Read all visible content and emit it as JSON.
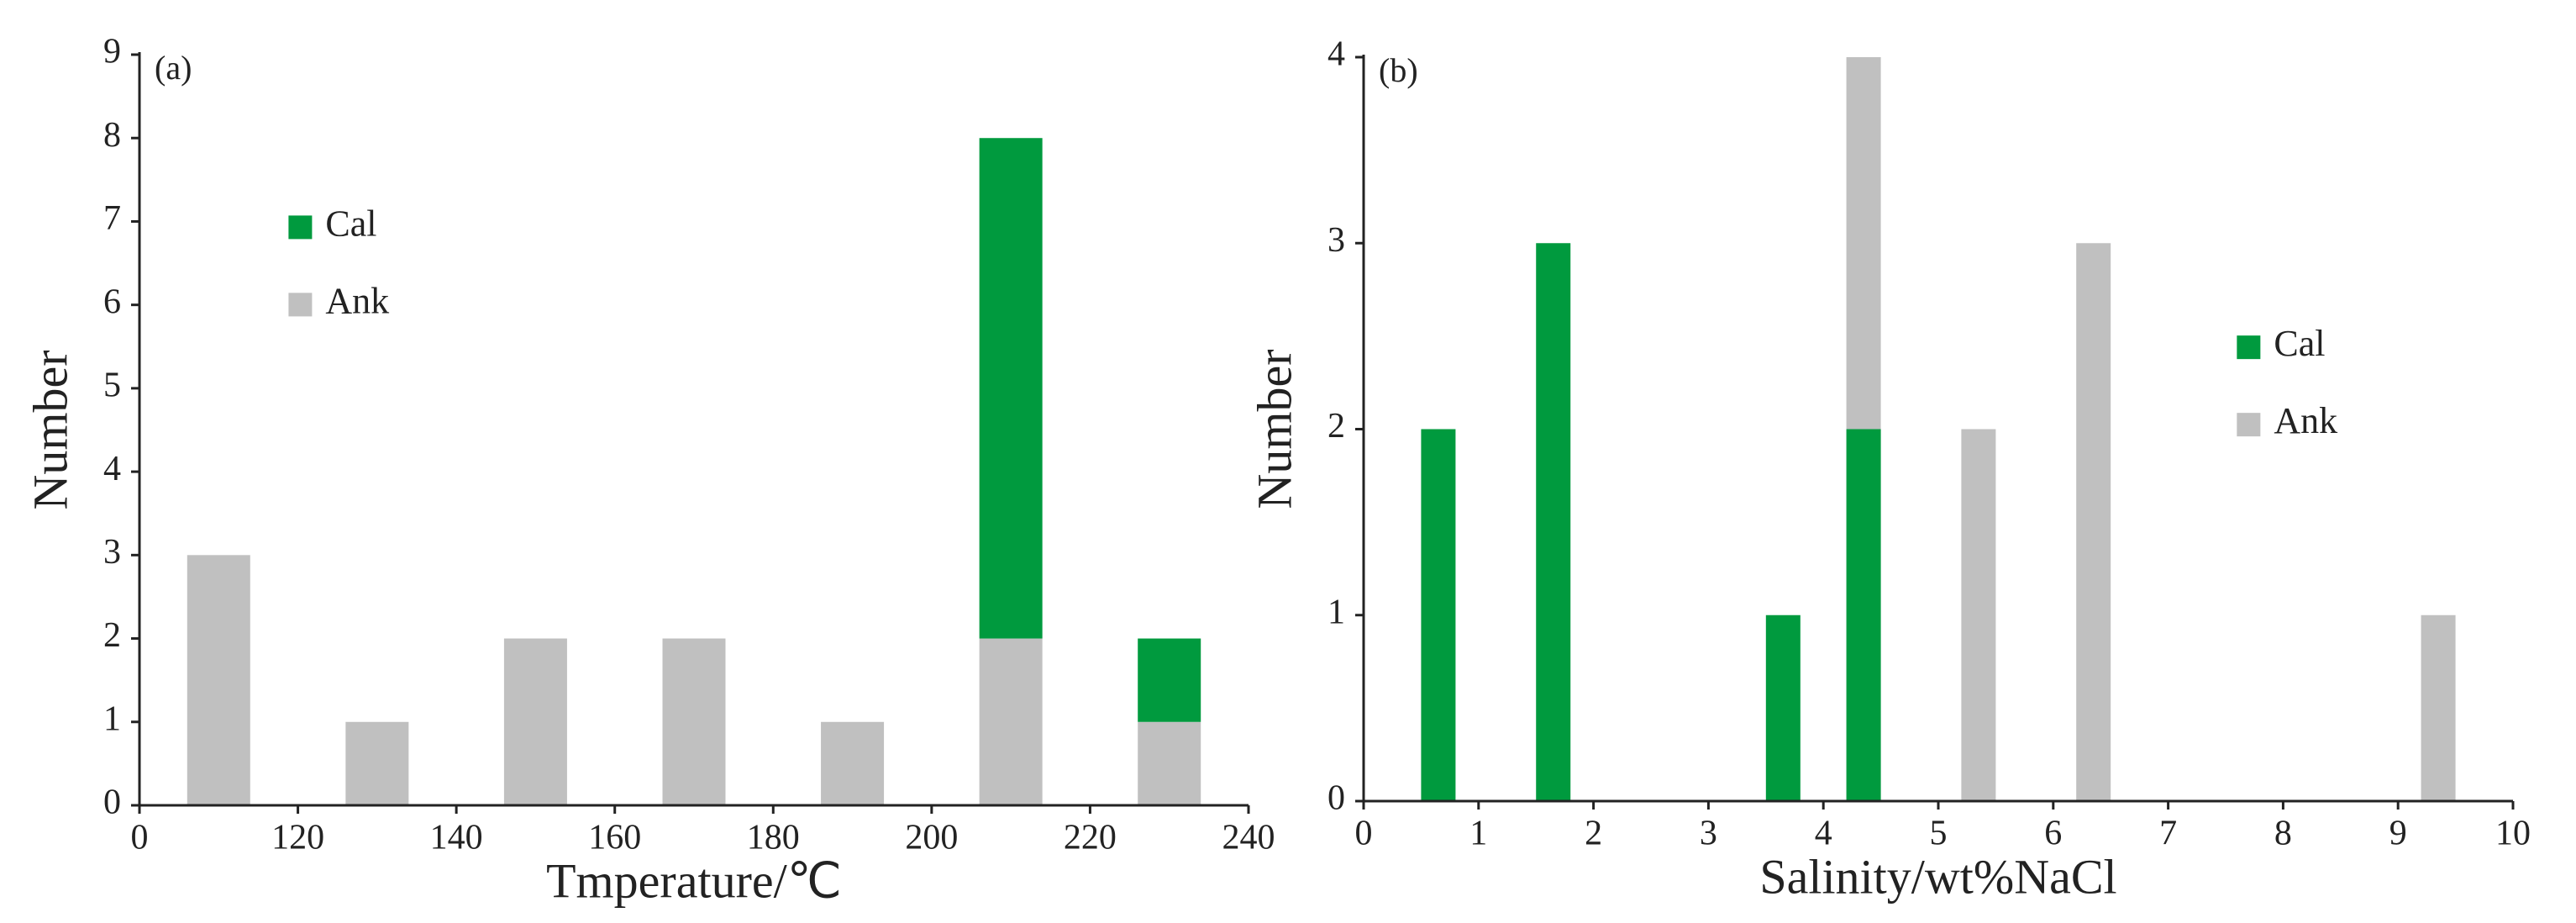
{
  "chart_data": [
    {
      "type": "bar",
      "stacked": true,
      "annotation": "(a)",
      "x_label": "Tmperature/℃",
      "y_label": "Number",
      "xlim": [
        100,
        240
      ],
      "xticks": [
        {
          "value": 100,
          "label": "0"
        },
        120,
        140,
        160,
        180,
        200,
        220,
        240
      ],
      "ylim": [
        0,
        9
      ],
      "yticks": [
        0,
        1,
        2,
        3,
        4,
        5,
        6,
        7,
        8,
        9
      ],
      "legend": "upper left",
      "series": [
        {
          "name": "Cal",
          "color": "#009a3e",
          "x": [
            210,
            230
          ],
          "values": [
            6,
            1
          ]
        },
        {
          "name": "Ank",
          "color": "#c0c0c0",
          "x": [
            110,
            130,
            150,
            170,
            190,
            210,
            230
          ],
          "values": [
            3,
            1,
            2,
            2,
            1,
            2,
            1
          ]
        }
      ]
    },
    {
      "type": "bar",
      "stacked": false,
      "annotation": "(b)",
      "x_label": "Salinity/wt%NaCl",
      "y_label": "Number",
      "xlim": [
        0,
        10
      ],
      "xticks": [
        0,
        1,
        2,
        3,
        4,
        5,
        6,
        7,
        8,
        9,
        10
      ],
      "ylim": [
        0,
        4
      ],
      "yticks": [
        0,
        1,
        2,
        3,
        4
      ],
      "legend": "center right",
      "series": [
        {
          "name": "Cal",
          "color": "#009a3e",
          "x": [
            0.65,
            1.65,
            3.65,
            4.35
          ],
          "values": [
            2,
            3,
            1,
            2
          ]
        },
        {
          "name": "Ank",
          "color": "#c0c0c0",
          "x": [
            4.35,
            5.35,
            6.35,
            9.35
          ],
          "values": [
            4,
            2,
            3,
            1
          ]
        }
      ]
    }
  ]
}
